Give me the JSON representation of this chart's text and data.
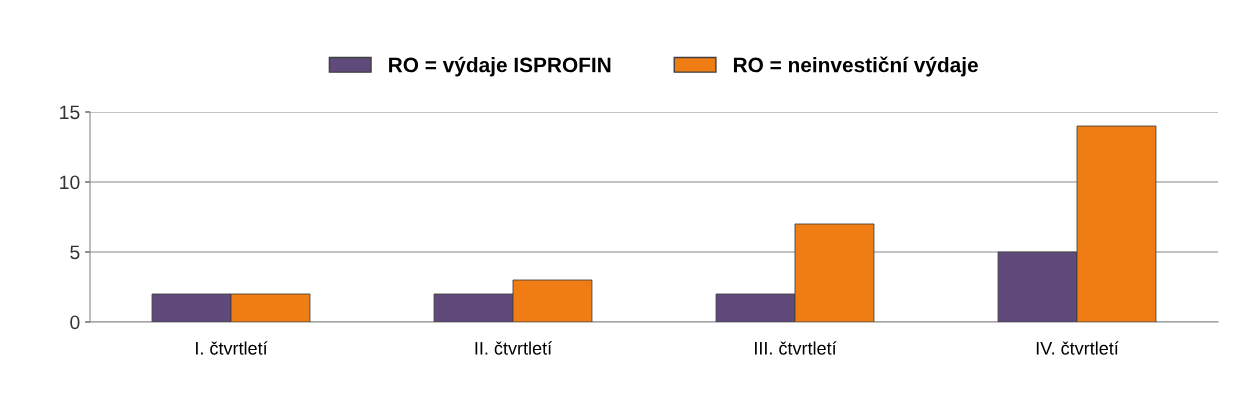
{
  "chart_data": {
    "type": "bar",
    "categories": [
      "I. čtvrtletí",
      "II. čtvrtletí",
      "III. čtvrtletí",
      "IV. čtvrtletí"
    ],
    "series": [
      {
        "name": "RO = výdaje ISPROFIN",
        "color": "#604a7b",
        "values": [
          2,
          2,
          2,
          5
        ]
      },
      {
        "name": "RO = neinvestiční výdaje",
        "color": "#f07c14",
        "values": [
          2,
          3,
          7,
          14
        ]
      }
    ],
    "ylim": [
      0,
      15
    ],
    "yticks": [
      0,
      5,
      10,
      15
    ],
    "grid": "y",
    "legend": "top"
  }
}
